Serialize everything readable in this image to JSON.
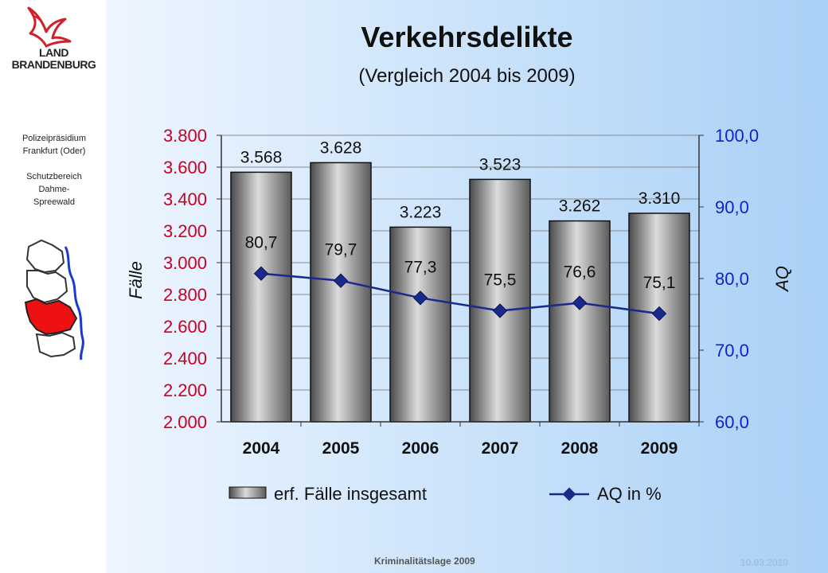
{
  "sidebar": {
    "logo_line1": "LAND",
    "logo_line2": "BRANDENBURG",
    "org_line1": "Polizeipräsidium",
    "org_line2": "Frankfurt (Oder)",
    "unit_line1": "Schutzbereich",
    "unit_line2": "Dahme-",
    "unit_line3": "Spreewald"
  },
  "header": {
    "title": "Verkehrsdelikte",
    "subtitle": "(Vergleich 2004 bis 2009)"
  },
  "footer": {
    "left": "Kriminalitätslage 2009",
    "right": "10.03.2010"
  },
  "colors": {
    "left_axis": "#cc0022",
    "right_axis": "#1122cc",
    "line": "#1a2a8c",
    "bar_dark": "#555555",
    "bar_light": "#d8d8d8"
  },
  "chart_data": {
    "type": "bar",
    "categories": [
      "2004",
      "2005",
      "2006",
      "2007",
      "2008",
      "2009"
    ],
    "series": [
      {
        "name": "erf. Fälle insgesamt",
        "type": "bar",
        "axis": "left",
        "values": [
          3568,
          3628,
          3223,
          3523,
          3262,
          3310
        ],
        "labels": [
          "3.568",
          "3.628",
          "3.223",
          "3.523",
          "3.262",
          "3.310"
        ]
      },
      {
        "name": "AQ in %",
        "type": "line",
        "axis": "right",
        "values": [
          80.7,
          79.7,
          77.3,
          75.5,
          76.6,
          75.1
        ],
        "labels": [
          "80,7",
          "79,7",
          "77,3",
          "75,5",
          "76,6",
          "75,1"
        ]
      }
    ],
    "ylabel": "Fälle",
    "y2label": "AQ",
    "ylim": [
      2000,
      3800
    ],
    "y2lim": [
      60,
      100
    ],
    "yticks": [
      2000,
      2200,
      2400,
      2600,
      2800,
      3000,
      3200,
      3400,
      3600,
      3800
    ],
    "ytick_labels": [
      "2.000",
      "2.200",
      "2.400",
      "2.600",
      "2.800",
      "3.000",
      "3.200",
      "3.400",
      "3.600",
      "3.800"
    ],
    "y2ticks": [
      60,
      70,
      80,
      90,
      100
    ],
    "y2tick_labels": [
      "60,0",
      "70,0",
      "80,0",
      "90,0",
      "100,0"
    ],
    "grid": true,
    "legend": "bottom"
  }
}
